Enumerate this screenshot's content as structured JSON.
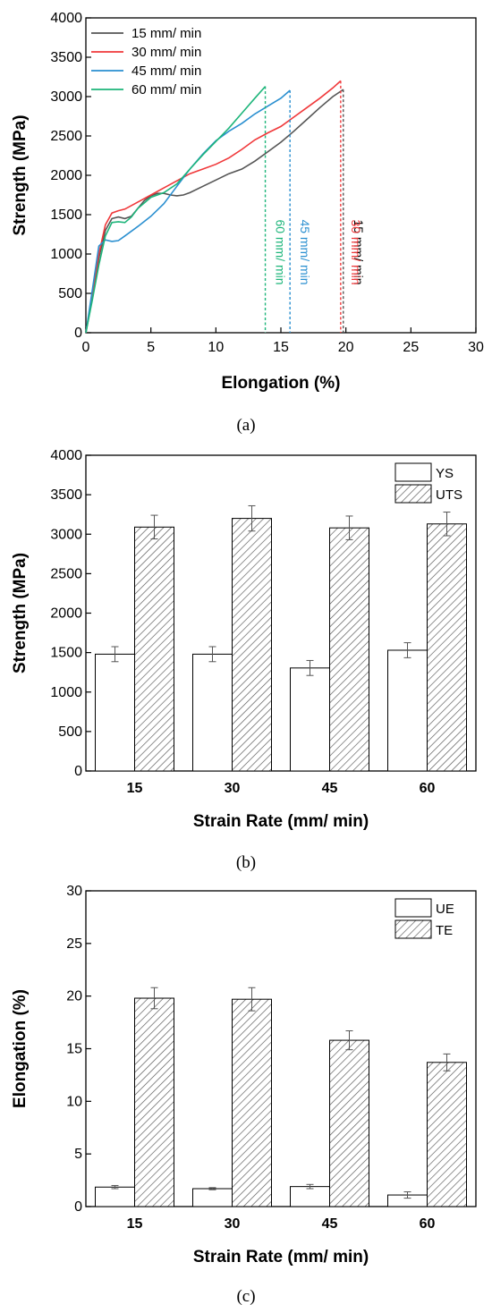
{
  "colors": {
    "15": "#555555",
    "30": "#f0383a",
    "45": "#2a8fd0",
    "60": "#1db57a"
  },
  "panel_labels": [
    "(a)",
    "(b)",
    "(c)"
  ],
  "chart_data": [
    {
      "type": "line",
      "xlabel": "Elongation (%)",
      "ylabel": "Strength (MPa)",
      "xlim": [
        0,
        30
      ],
      "ylim": [
        0,
        4000
      ],
      "xticks": [
        0,
        5,
        10,
        15,
        20,
        25,
        30
      ],
      "yticks": [
        0,
        500,
        1000,
        1500,
        2000,
        2500,
        3000,
        3500,
        4000
      ],
      "legend_position": "top-left",
      "series": [
        {
          "name": "15 mm/ min",
          "color": "#555555",
          "points": [
            [
              0,
              0
            ],
            [
              0.5,
              450
            ],
            [
              1,
              950
            ],
            [
              1.5,
              1300
            ],
            [
              2,
              1450
            ],
            [
              2.5,
              1470
            ],
            [
              3,
              1450
            ],
            [
              3.5,
              1480
            ],
            [
              4,
              1580
            ],
            [
              4.5,
              1680
            ],
            [
              5,
              1740
            ],
            [
              5.5,
              1770
            ],
            [
              6,
              1770
            ],
            [
              6.5,
              1750
            ],
            [
              7,
              1740
            ],
            [
              7.5,
              1750
            ],
            [
              8,
              1780
            ],
            [
              9,
              1860
            ],
            [
              10,
              1940
            ],
            [
              11,
              2020
            ],
            [
              12,
              2080
            ],
            [
              13,
              2180
            ],
            [
              14,
              2300
            ],
            [
              15,
              2420
            ],
            [
              16,
              2560
            ],
            [
              17,
              2710
            ],
            [
              18,
              2860
            ],
            [
              19,
              3000
            ],
            [
              19.8,
              3090
            ]
          ],
          "break_x": 19.8,
          "break_label": "15 mm/ min"
        },
        {
          "name": "30 mm/ min",
          "color": "#f0383a",
          "points": [
            [
              0,
              0
            ],
            [
              0.5,
              500
            ],
            [
              1,
              1000
            ],
            [
              1.5,
              1370
            ],
            [
              2,
              1520
            ],
            [
              2.5,
              1550
            ],
            [
              3,
              1570
            ],
            [
              4,
              1660
            ],
            [
              5,
              1750
            ],
            [
              6,
              1840
            ],
            [
              7,
              1930
            ],
            [
              8,
              2020
            ],
            [
              9,
              2080
            ],
            [
              10,
              2140
            ],
            [
              11,
              2220
            ],
            [
              12,
              2330
            ],
            [
              13,
              2450
            ],
            [
              14,
              2540
            ],
            [
              15,
              2620
            ],
            [
              16,
              2740
            ],
            [
              17,
              2860
            ],
            [
              18,
              2980
            ],
            [
              19,
              3110
            ],
            [
              19.6,
              3200
            ]
          ],
          "break_x": 19.6,
          "break_label": "30 mm/ min"
        },
        {
          "name": "45 mm/ min",
          "color": "#2a8fd0",
          "points": [
            [
              0,
              0
            ],
            [
              0.5,
              550
            ],
            [
              1,
              1100
            ],
            [
              1.5,
              1180
            ],
            [
              2,
              1160
            ],
            [
              2.5,
              1170
            ],
            [
              3,
              1230
            ],
            [
              4,
              1350
            ],
            [
              5,
              1480
            ],
            [
              6,
              1640
            ],
            [
              7,
              1860
            ],
            [
              8,
              2080
            ],
            [
              9,
              2270
            ],
            [
              10,
              2440
            ],
            [
              11,
              2560
            ],
            [
              12,
              2660
            ],
            [
              13,
              2780
            ],
            [
              14,
              2880
            ],
            [
              15,
              2980
            ],
            [
              15.7,
              3080
            ]
          ],
          "break_x": 15.7,
          "break_label": "45 mm/ min"
        },
        {
          "name": "60 mm/ min",
          "color": "#1db57a",
          "points": [
            [
              0,
              0
            ],
            [
              0.5,
              420
            ],
            [
              1,
              860
            ],
            [
              1.5,
              1230
            ],
            [
              2,
              1400
            ],
            [
              2.5,
              1410
            ],
            [
              3,
              1400
            ],
            [
              3.5,
              1470
            ],
            [
              4,
              1580
            ],
            [
              5,
              1720
            ],
            [
              6,
              1780
            ],
            [
              7,
              1890
            ],
            [
              8,
              2080
            ],
            [
              9,
              2260
            ],
            [
              10,
              2430
            ],
            [
              11,
              2600
            ],
            [
              12,
              2790
            ],
            [
              13,
              2980
            ],
            [
              13.8,
              3130
            ]
          ],
          "break_x": 13.8,
          "break_label": "60 mm/ min"
        }
      ]
    },
    {
      "type": "bar",
      "xlabel": "Strain Rate (mm/ min)",
      "ylabel": "Strength (MPa)",
      "ylim": [
        0,
        4000
      ],
      "yticks": [
        0,
        500,
        1000,
        1500,
        2000,
        2500,
        3000,
        3500,
        4000
      ],
      "categories": [
        "15",
        "30",
        "45",
        "60"
      ],
      "legend_position": "top-right",
      "series": [
        {
          "name": "YS",
          "pattern": "open",
          "values": [
            1480,
            1480,
            1305,
            1530
          ],
          "errors": [
            95,
            95,
            95,
            95
          ]
        },
        {
          "name": "UTS",
          "pattern": "hatched",
          "values": [
            3090,
            3200,
            3080,
            3130
          ],
          "errors": [
            150,
            160,
            150,
            150
          ]
        }
      ]
    },
    {
      "type": "bar",
      "xlabel": "Strain Rate (mm/ min)",
      "ylabel": "Elongation (%)",
      "ylim": [
        0,
        30
      ],
      "yticks": [
        0,
        5,
        10,
        15,
        20,
        25,
        30
      ],
      "categories": [
        "15",
        "30",
        "45",
        "60"
      ],
      "legend_position": "top-right",
      "series": [
        {
          "name": "UE",
          "pattern": "open",
          "values": [
            1.85,
            1.7,
            1.9,
            1.1
          ],
          "errors": [
            0.15,
            0.1,
            0.2,
            0.3
          ]
        },
        {
          "name": "TE",
          "pattern": "hatched",
          "values": [
            19.8,
            19.7,
            15.8,
            13.7
          ],
          "errors": [
            1.0,
            1.1,
            0.9,
            0.8
          ]
        }
      ]
    }
  ]
}
